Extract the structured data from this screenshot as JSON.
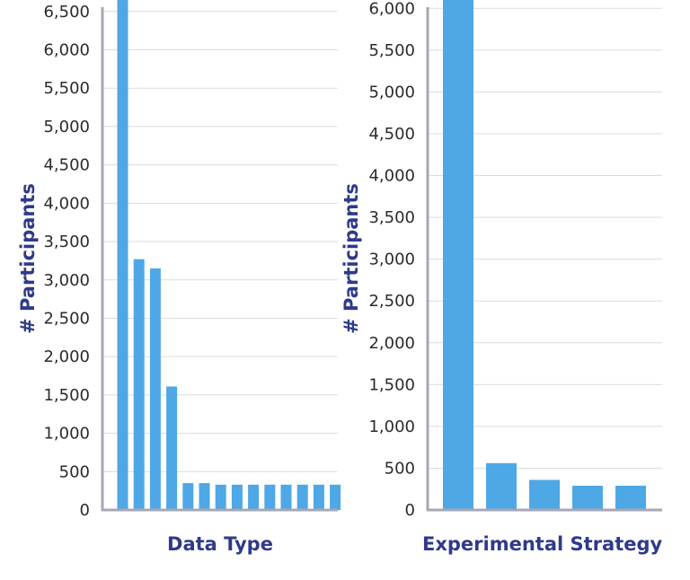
{
  "chart_data": [
    {
      "type": "bar",
      "xlabel": "Data Type",
      "ylabel": "# Participants",
      "ylim": [
        0,
        6650
      ],
      "yticks": [
        0,
        500,
        1000,
        1500,
        2000,
        2500,
        3000,
        3500,
        4000,
        4500,
        5000,
        5500,
        6000,
        6500
      ],
      "ytick_labels": [
        "0",
        "500",
        "1,000",
        "1,500",
        "2,000",
        "2,500",
        "3,000",
        "3,500",
        "4,000",
        "4,500",
        "5,000",
        "5,500",
        "6,000",
        "6,500"
      ],
      "categories": [
        "",
        "",
        "",
        "",
        "",
        "",
        "",
        "",
        "",
        "",
        "",
        "",
        "",
        ""
      ],
      "values": [
        6700,
        3270,
        3150,
        1610,
        350,
        350,
        330,
        330,
        330,
        330,
        330,
        330,
        330,
        330
      ],
      "grid": true,
      "bar_color": "#4ea8e6"
    },
    {
      "type": "bar",
      "xlabel": "Experimental Strategy",
      "ylabel": "# Participants",
      "ylim": [
        0,
        6100
      ],
      "yticks": [
        0,
        500,
        1000,
        1500,
        2000,
        2500,
        3000,
        3500,
        4000,
        4500,
        5000,
        5500,
        6000
      ],
      "ytick_labels": [
        "0",
        "500",
        "1,000",
        "1,500",
        "2,000",
        "2,500",
        "3,000",
        "3,500",
        "4,000",
        "4,500",
        "5,000",
        "5,500",
        "6,000"
      ],
      "categories": [
        "",
        "",
        "",
        "",
        ""
      ],
      "values": [
        6100,
        560,
        360,
        290,
        290
      ],
      "grid": true,
      "bar_color": "#4ea8e6"
    }
  ]
}
